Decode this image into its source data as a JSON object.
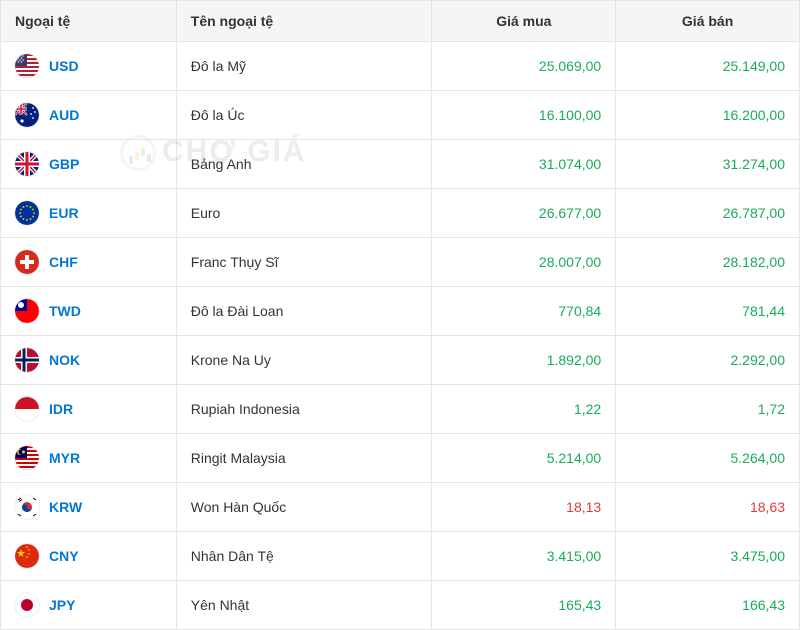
{
  "columns": {
    "currency": "Ngoại tệ",
    "name": "Tên ngoại tệ",
    "buy": "Giá mua",
    "sell": "Giá bán"
  },
  "colors": {
    "code": "#0078d4",
    "up": "#1aab5a",
    "down": "#e23b3b",
    "header_bg": "#f5f5f5",
    "border": "#e5e5e5",
    "text": "#333333"
  },
  "watermark": "CHỢ GIÁ",
  "rows": [
    {
      "code": "USD",
      "flag": "us",
      "name": "Đô la Mỹ",
      "buy": "25.069,00",
      "sell": "25.149,00",
      "buy_color": "#1aab5a",
      "sell_color": "#1aab5a"
    },
    {
      "code": "AUD",
      "flag": "au",
      "name": "Đô la Úc",
      "buy": "16.100,00",
      "sell": "16.200,00",
      "buy_color": "#1aab5a",
      "sell_color": "#1aab5a"
    },
    {
      "code": "GBP",
      "flag": "gb",
      "name": "Bảng Anh",
      "buy": "31.074,00",
      "sell": "31.274,00",
      "buy_color": "#1aab5a",
      "sell_color": "#1aab5a"
    },
    {
      "code": "EUR",
      "flag": "eu",
      "name": "Euro",
      "buy": "26.677,00",
      "sell": "26.787,00",
      "buy_color": "#1aab5a",
      "sell_color": "#1aab5a"
    },
    {
      "code": "CHF",
      "flag": "ch",
      "name": "Franc Thụy Sĩ",
      "buy": "28.007,00",
      "sell": "28.182,00",
      "buy_color": "#1aab5a",
      "sell_color": "#1aab5a"
    },
    {
      "code": "TWD",
      "flag": "tw",
      "name": "Đô la Đài Loan",
      "buy": "770,84",
      "sell": "781,44",
      "buy_color": "#1aab5a",
      "sell_color": "#1aab5a"
    },
    {
      "code": "NOK",
      "flag": "no",
      "name": "Krone Na Uy",
      "buy": "1.892,00",
      "sell": "2.292,00",
      "buy_color": "#1aab5a",
      "sell_color": "#1aab5a"
    },
    {
      "code": "IDR",
      "flag": "id",
      "name": "Rupiah Indonesia",
      "buy": "1,22",
      "sell": "1,72",
      "buy_color": "#1aab5a",
      "sell_color": "#1aab5a"
    },
    {
      "code": "MYR",
      "flag": "my",
      "name": "Ringit Malaysia",
      "buy": "5.214,00",
      "sell": "5.264,00",
      "buy_color": "#1aab5a",
      "sell_color": "#1aab5a"
    },
    {
      "code": "KRW",
      "flag": "kr",
      "name": "Won Hàn Quốc",
      "buy": "18,13",
      "sell": "18,63",
      "buy_color": "#e23b3b",
      "sell_color": "#e23b3b"
    },
    {
      "code": "CNY",
      "flag": "cn",
      "name": "Nhân Dân Tệ",
      "buy": "3.415,00",
      "sell": "3.475,00",
      "buy_color": "#1aab5a",
      "sell_color": "#1aab5a"
    },
    {
      "code": "JPY",
      "flag": "jp",
      "name": "Yên Nhật",
      "buy": "165,43",
      "sell": "166,43",
      "buy_color": "#1aab5a",
      "sell_color": "#1aab5a"
    }
  ]
}
